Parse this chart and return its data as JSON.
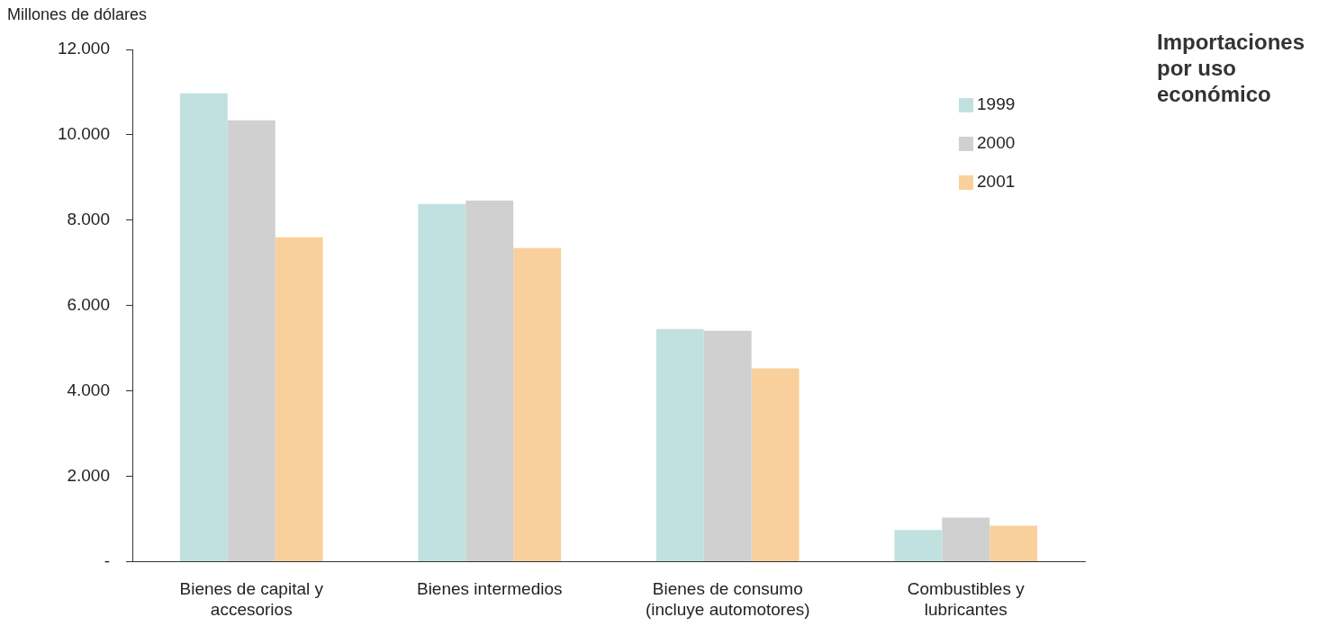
{
  "chart_data": {
    "type": "bar",
    "title": "Importaciones por uso económico",
    "ylabel": "Millones de dólares",
    "categories": [
      "Bienes de capital y accesorios",
      "Bienes intermedios",
      "Bienes de consumo (incluye automotores)",
      "Combustibles y lubricantes"
    ],
    "series": [
      {
        "name": "1999",
        "color": "#c0e1e0",
        "values": [
          10970,
          8380,
          5450,
          740
        ]
      },
      {
        "name": "2000",
        "color": "#d0d0d0",
        "values": [
          10340,
          8460,
          5410,
          1030
        ]
      },
      {
        "name": "2001",
        "color": "#f9d09b",
        "values": [
          7600,
          7350,
          4530,
          840
        ]
      }
    ],
    "ylim": [
      0,
      12000
    ],
    "yticks": [
      {
        "value": 0,
        "label": "-"
      },
      {
        "value": 2000,
        "label": "2.000"
      },
      {
        "value": 4000,
        "label": "4.000"
      },
      {
        "value": 6000,
        "label": "6.000"
      },
      {
        "value": 8000,
        "label": "8.000"
      },
      {
        "value": 10000,
        "label": "10.000"
      },
      {
        "value": 12000,
        "label": "12.000"
      }
    ],
    "grid": false,
    "legend": "top right"
  }
}
